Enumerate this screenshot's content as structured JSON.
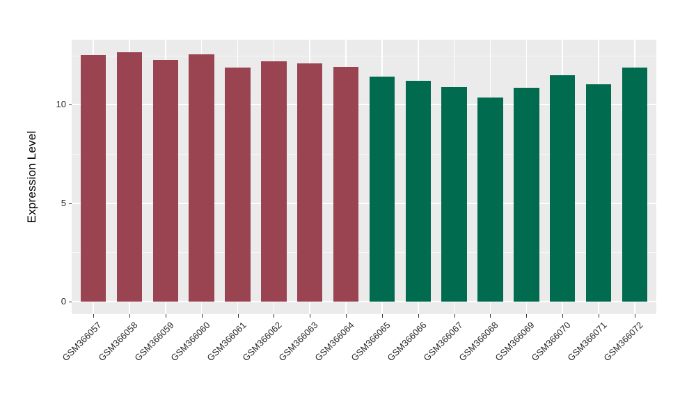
{
  "chart_data": {
    "type": "bar",
    "title": "",
    "xlabel": "",
    "ylabel": "Expression Level",
    "categories": [
      "GSM366057",
      "GSM366058",
      "GSM366059",
      "GSM366060",
      "GSM366061",
      "GSM366062",
      "GSM366063",
      "GSM366064",
      "GSM366065",
      "GSM366066",
      "GSM366067",
      "GSM366068",
      "GSM366069",
      "GSM366070",
      "GSM366071",
      "GSM366072"
    ],
    "values": [
      12.53,
      12.68,
      12.28,
      12.55,
      11.89,
      12.19,
      12.09,
      11.93,
      11.42,
      11.21,
      10.91,
      10.38,
      10.87,
      11.5,
      11.05,
      11.88
    ],
    "bar_colors": [
      "#9B4451",
      "#9B4451",
      "#9B4451",
      "#9B4451",
      "#9B4451",
      "#9B4451",
      "#9B4451",
      "#9B4451",
      "#006B4F",
      "#006B4F",
      "#006B4F",
      "#006B4F",
      "#006B4F",
      "#006B4F",
      "#006B4F",
      "#006B4F"
    ],
    "groups": [
      {
        "name": "GSM366057-GSM366064",
        "color": "#9B4451"
      },
      {
        "name": "GSM366065-GSM366072",
        "color": "#006B4F"
      }
    ],
    "yticks": [
      0,
      5,
      10
    ],
    "minor_yticks": [
      2.5,
      7.5,
      12.5
    ],
    "axis_range": [
      -0.63,
      13.3
    ],
    "grid": true,
    "legend": "none",
    "colors": {
      "figure_bg": "#FFFFFF",
      "panel_bg": "#EBEBEB",
      "grid_major": "#FFFFFF",
      "grid_minor": "rgba(255,255,255,0.6)",
      "tick_mark": "#333333",
      "tick_label": "#262626",
      "axis_title": "#000000"
    }
  }
}
